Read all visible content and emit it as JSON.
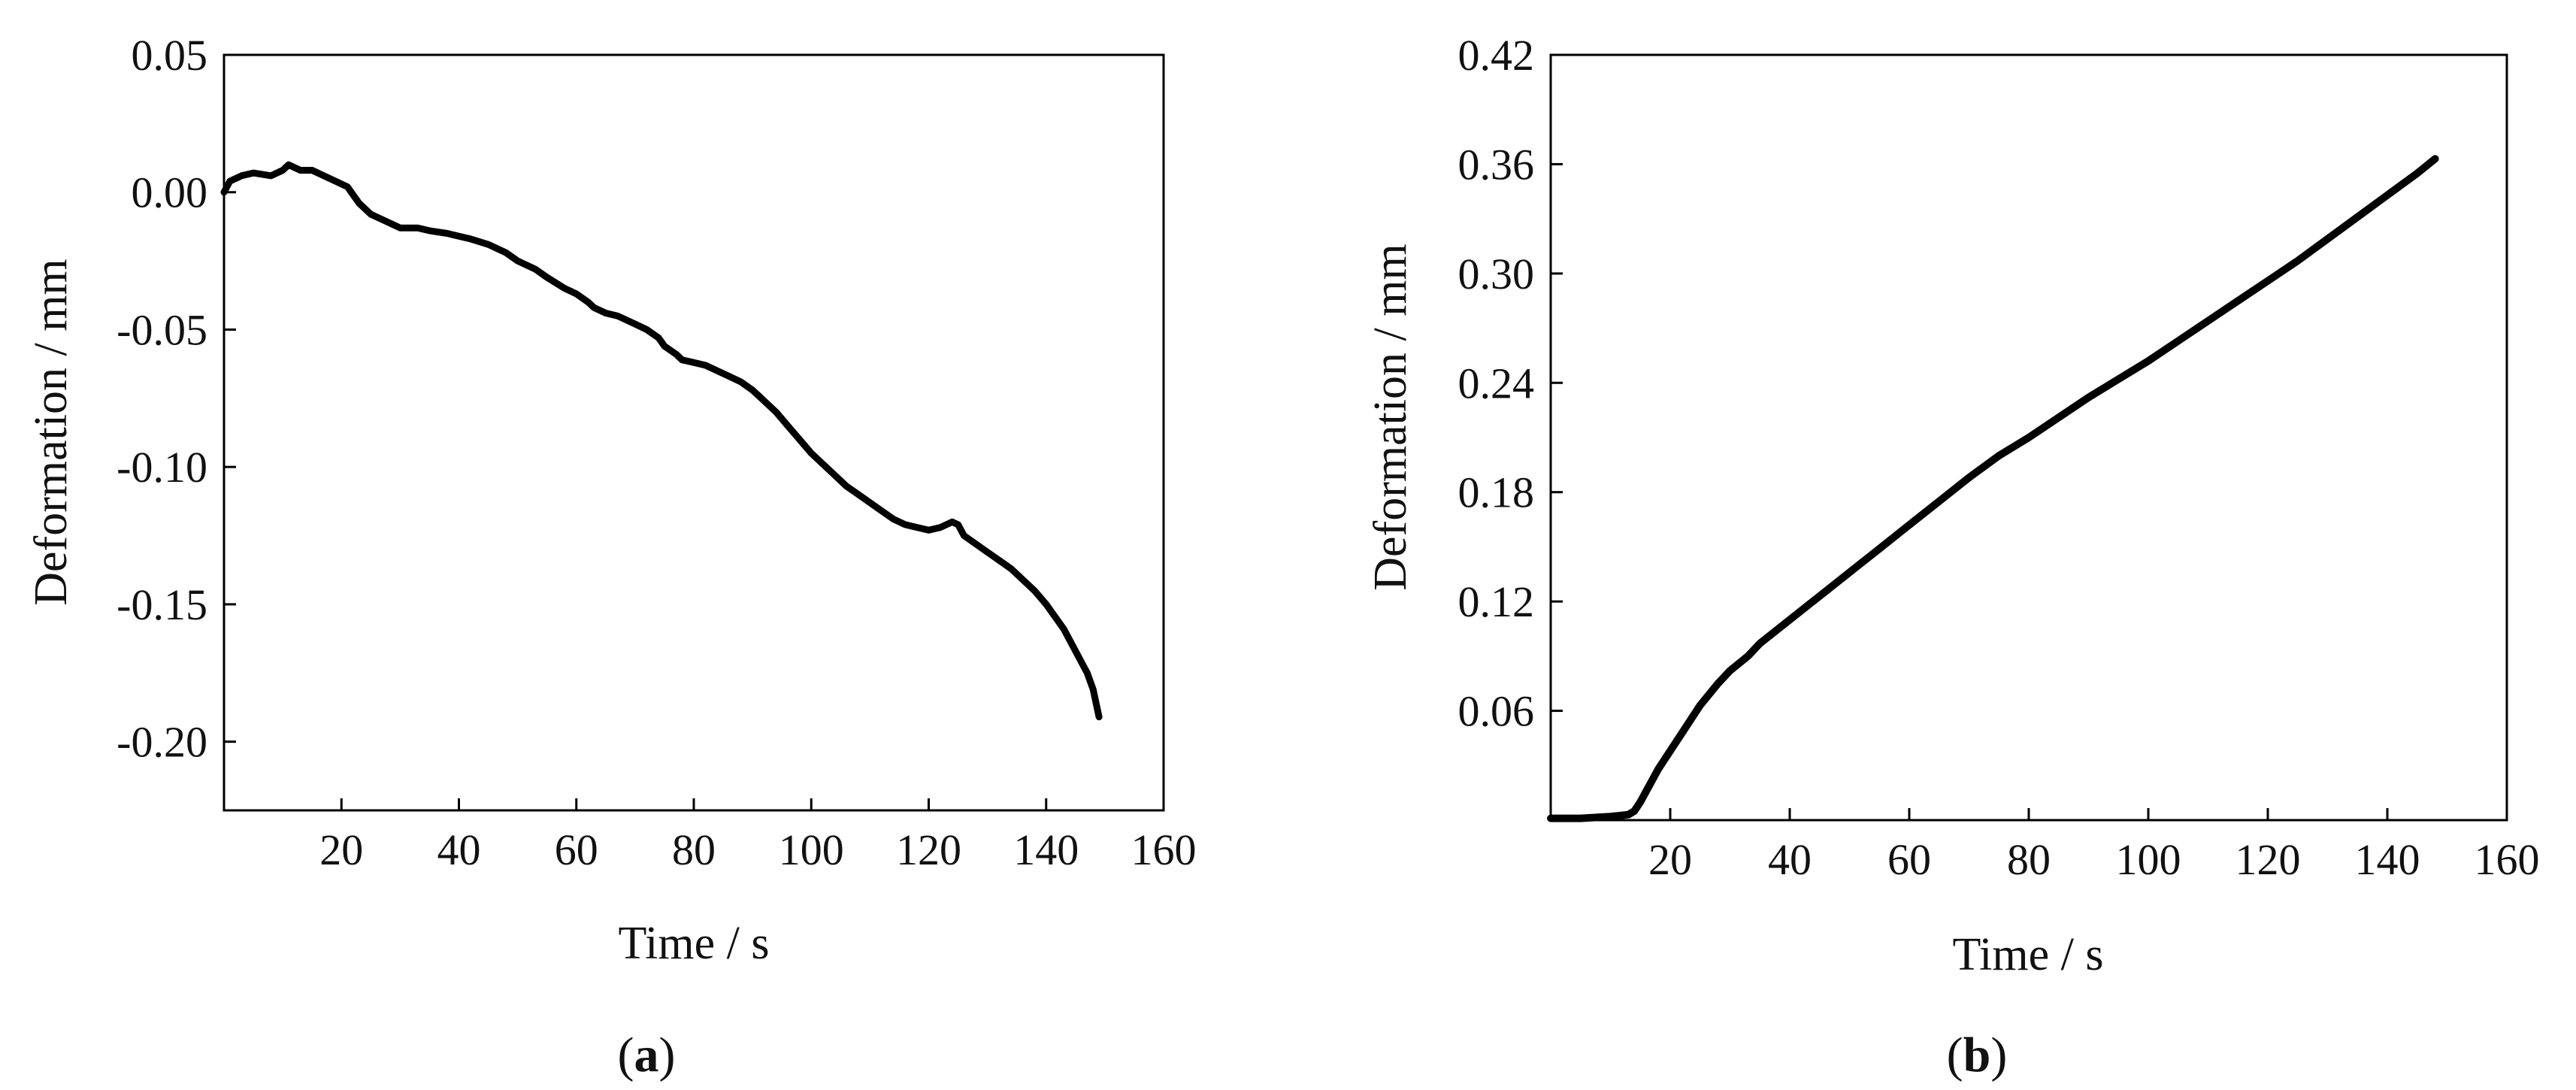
{
  "chart_data": [
    {
      "type": "line",
      "panel_label": "a",
      "xlabel": "Time / s",
      "ylabel": "Deformation / mm",
      "xlim": [
        0,
        160
      ],
      "ylim": [
        -0.225,
        0.05
      ],
      "xticks": [
        20,
        40,
        60,
        80,
        100,
        120,
        140,
        160
      ],
      "xtick_labels": [
        "20",
        "40",
        "60",
        "80",
        "100",
        "120",
        "140",
        "160"
      ],
      "yticks": [
        0.05,
        0.0,
        -0.05,
        -0.1,
        -0.15,
        -0.2
      ],
      "ytick_labels": [
        "0.05",
        "0.00",
        "-0.05",
        "-0.10",
        "-0.15",
        "-0.20"
      ],
      "grid": false,
      "legend": "none",
      "line_color": "#000000",
      "series": [
        {
          "x": [
            0,
            1,
            3,
            5,
            8,
            10,
            11,
            13,
            15,
            17,
            19,
            20,
            21,
            23,
            25,
            28,
            30,
            33,
            35,
            38,
            40,
            42,
            45,
            48,
            50,
            53,
            55,
            58,
            60,
            62,
            63,
            65,
            67,
            68,
            70,
            72,
            74,
            75,
            77,
            78,
            80,
            82,
            84,
            86,
            88,
            90,
            92,
            94,
            96,
            98,
            100,
            102,
            104,
            106,
            108,
            110,
            112,
            114,
            116,
            118,
            120,
            122,
            124,
            125,
            126,
            128,
            130,
            132,
            134,
            136,
            138,
            140,
            141,
            142,
            143,
            144,
            145,
            146,
            147,
            148,
            148.5,
            149
          ],
          "y": [
            0.0,
            0.004,
            0.006,
            0.007,
            0.006,
            0.008,
            0.01,
            0.008,
            0.008,
            0.006,
            0.004,
            0.003,
            0.002,
            -0.004,
            -0.008,
            -0.011,
            -0.013,
            -0.013,
            -0.014,
            -0.015,
            -0.016,
            -0.017,
            -0.019,
            -0.022,
            -0.025,
            -0.028,
            -0.031,
            -0.035,
            -0.037,
            -0.04,
            -0.042,
            -0.044,
            -0.045,
            -0.046,
            -0.048,
            -0.05,
            -0.053,
            -0.056,
            -0.059,
            -0.061,
            -0.062,
            -0.063,
            -0.065,
            -0.067,
            -0.069,
            -0.072,
            -0.076,
            -0.08,
            -0.085,
            -0.09,
            -0.095,
            -0.099,
            -0.103,
            -0.107,
            -0.11,
            -0.113,
            -0.116,
            -0.119,
            -0.121,
            -0.122,
            -0.123,
            -0.122,
            -0.12,
            -0.121,
            -0.125,
            -0.128,
            -0.131,
            -0.134,
            -0.137,
            -0.141,
            -0.145,
            -0.15,
            -0.153,
            -0.156,
            -0.159,
            -0.163,
            -0.167,
            -0.171,
            -0.175,
            -0.181,
            -0.186,
            -0.191
          ]
        }
      ]
    },
    {
      "type": "line",
      "panel_label": "b",
      "xlabel": "Time / s",
      "ylabel": "Deformation / mm",
      "xlim": [
        0,
        160
      ],
      "ylim": [
        0,
        0.42
      ],
      "xticks": [
        20,
        40,
        60,
        80,
        100,
        120,
        140,
        160
      ],
      "xtick_labels": [
        "20",
        "40",
        "60",
        "80",
        "100",
        "120",
        "140",
        "160"
      ],
      "yticks": [
        0.06,
        0.12,
        0.18,
        0.24,
        0.3,
        0.36,
        0.42
      ],
      "ytick_labels": [
        "0.06",
        "0.12",
        "0.18",
        "0.24",
        "0.30",
        "0.36",
        "0.42"
      ],
      "grid": false,
      "legend": "none",
      "line_color": "#000000",
      "series": [
        {
          "x": [
            0,
            5,
            10,
            13,
            14,
            15,
            16,
            18,
            20,
            22,
            25,
            28,
            30,
            33,
            35,
            40,
            45,
            50,
            55,
            60,
            65,
            70,
            75,
            80,
            85,
            90,
            95,
            100,
            105,
            110,
            115,
            120,
            125,
            130,
            135,
            140,
            145,
            148
          ],
          "y": [
            0.001,
            0.001,
            0.002,
            0.003,
            0.005,
            0.01,
            0.016,
            0.028,
            0.038,
            0.048,
            0.063,
            0.075,
            0.082,
            0.09,
            0.097,
            0.11,
            0.123,
            0.136,
            0.149,
            0.162,
            0.175,
            0.188,
            0.2,
            0.21,
            0.221,
            0.232,
            0.242,
            0.252,
            0.263,
            0.274,
            0.285,
            0.296,
            0.307,
            0.319,
            0.331,
            0.343,
            0.355,
            0.363
          ]
        }
      ]
    }
  ]
}
